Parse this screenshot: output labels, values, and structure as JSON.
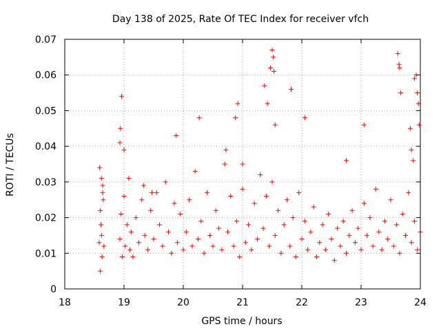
{
  "chart_data": {
    "type": "scatter",
    "title": "Day 138 of 2025, Rate Of TEC Index for receiver vfch",
    "xlabel": "GPS time / hours",
    "ylabel": "ROTI / TECUs",
    "xlim": [
      18,
      24
    ],
    "ylim": [
      0,
      0.07
    ],
    "x_ticks": [
      18,
      19,
      20,
      21,
      22,
      23,
      24
    ],
    "y_ticks": [
      0,
      0.01,
      0.02,
      0.03,
      0.04,
      0.05,
      0.06,
      0.07
    ],
    "x_tick_labels": [
      "18",
      "19",
      "20",
      "21",
      "22",
      "23",
      "24"
    ],
    "y_tick_labels": [
      "0",
      "0.01",
      "0.02",
      "0.03",
      "0.04",
      "0.05",
      "0.06",
      "0.07"
    ],
    "grid": true,
    "marker": "+",
    "color": "#ff0000",
    "series": [
      {
        "name": "ROTI",
        "x": [
          18.58,
          18.6,
          18.62,
          18.64,
          18.66,
          18.59,
          18.61,
          18.63,
          18.65,
          18.6,
          18.62,
          18.64,
          18.93,
          18.95,
          18.97,
          19.0,
          19.02,
          19.05,
          19.08,
          19.1,
          19.12,
          19.15,
          19.2,
          19.25,
          19.3,
          19.35,
          19.4,
          19.45,
          19.5,
          19.55,
          19.6,
          19.65,
          19.7,
          19.75,
          19.8,
          19.85,
          19.9,
          19.95,
          20.0,
          20.05,
          20.1,
          20.15,
          20.2,
          20.25,
          20.3,
          20.35,
          20.4,
          20.45,
          20.5,
          20.55,
          20.6,
          20.65,
          20.7,
          20.75,
          20.8,
          20.85,
          20.9,
          20.95,
          21.0,
          21.05,
          21.1,
          21.15,
          21.2,
          21.25,
          21.3,
          21.35,
          21.4,
          21.45,
          21.5,
          21.55,
          21.6,
          21.65,
          21.7,
          21.75,
          21.8,
          21.85,
          21.9,
          21.95,
          22.0,
          22.05,
          22.1,
          22.15,
          22.2,
          22.25,
          22.3,
          22.35,
          22.4,
          22.45,
          22.5,
          22.55,
          22.6,
          22.65,
          22.7,
          22.75,
          22.8,
          22.85,
          22.9,
          22.95,
          23.0,
          23.05,
          23.1,
          23.15,
          23.2,
          23.25,
          23.3,
          23.35,
          23.4,
          23.45,
          23.5,
          23.55,
          23.6,
          23.65,
          23.7,
          23.75,
          23.8,
          23.85,
          23.9,
          23.95,
          24.0,
          18.93,
          18.94,
          18.96,
          19.0,
          19.33,
          19.47,
          19.88,
          20.27,
          20.72,
          20.88,
          20.92,
          21.0,
          21.37,
          21.42,
          21.47,
          21.5,
          21.52,
          21.53,
          21.55,
          21.82,
          22.05,
          22.75,
          23.05,
          23.62,
          23.64,
          23.65,
          23.67,
          23.83,
          23.9,
          23.93,
          23.95,
          23.97,
          23.98,
          23.88,
          23.85
        ],
        "y": [
          0.013,
          0.022,
          0.031,
          0.027,
          0.012,
          0.034,
          0.018,
          0.009,
          0.025,
          0.005,
          0.015,
          0.029,
          0.014,
          0.021,
          0.009,
          0.026,
          0.012,
          0.018,
          0.031,
          0.011,
          0.016,
          0.009,
          0.02,
          0.013,
          0.025,
          0.015,
          0.011,
          0.022,
          0.014,
          0.027,
          0.018,
          0.012,
          0.03,
          0.016,
          0.01,
          0.024,
          0.013,
          0.021,
          0.011,
          0.016,
          0.025,
          0.012,
          0.033,
          0.014,
          0.019,
          0.01,
          0.027,
          0.015,
          0.012,
          0.022,
          0.017,
          0.011,
          0.035,
          0.016,
          0.026,
          0.012,
          0.019,
          0.009,
          0.028,
          0.013,
          0.018,
          0.011,
          0.024,
          0.014,
          0.032,
          0.017,
          0.026,
          0.012,
          0.03,
          0.015,
          0.022,
          0.01,
          0.018,
          0.025,
          0.012,
          0.02,
          0.009,
          0.027,
          0.014,
          0.019,
          0.011,
          0.016,
          0.023,
          0.009,
          0.013,
          0.018,
          0.011,
          0.021,
          0.014,
          0.008,
          0.017,
          0.012,
          0.019,
          0.01,
          0.015,
          0.022,
          0.013,
          0.017,
          0.011,
          0.024,
          0.015,
          0.02,
          0.012,
          0.028,
          0.016,
          0.011,
          0.019,
          0.014,
          0.025,
          0.012,
          0.018,
          0.01,
          0.021,
          0.015,
          0.027,
          0.013,
          0.019,
          0.011,
          0.016,
          0.041,
          0.045,
          0.054,
          0.039,
          0.029,
          0.027,
          0.043,
          0.048,
          0.039,
          0.048,
          0.052,
          0.035,
          0.057,
          0.052,
          0.062,
          0.067,
          0.065,
          0.061,
          0.046,
          0.056,
          0.048,
          0.036,
          0.046,
          0.066,
          0.063,
          0.062,
          0.055,
          0.045,
          0.059,
          0.06,
          0.055,
          0.052,
          0.046,
          0.036,
          0.039
        ]
      }
    ]
  }
}
